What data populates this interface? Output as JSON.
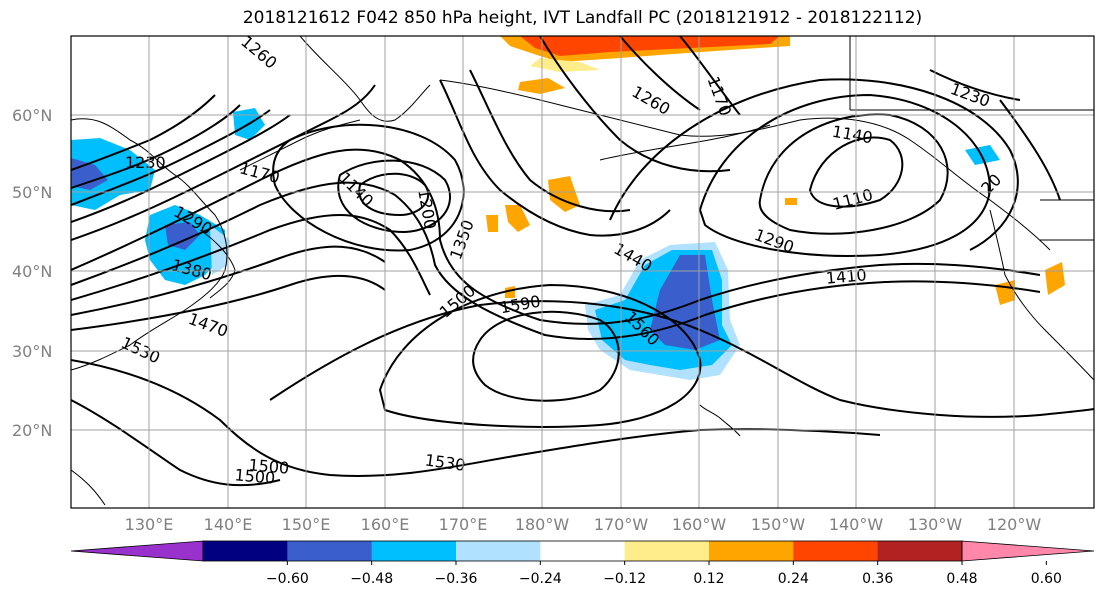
{
  "title": "2018121612 F042 850 hPa height, IVT Landfall PC (2018121912 - 2018122112)",
  "lat_labels": [
    "60°N",
    "50°N",
    "40°N",
    "30°N",
    "20°N"
  ],
  "lon_labels": [
    "130°E",
    "140°E",
    "150°E",
    "160°E",
    "170°E",
    "180°W",
    "170°W",
    "160°W",
    "150°W",
    "140°W",
    "130°W",
    "120°W"
  ],
  "contour_labels": [
    "1260",
    "1170",
    "1140",
    "1230",
    "1290",
    "1380",
    "1470",
    "1530",
    "1500",
    "1350",
    "1200",
    "1500",
    "1590",
    "1440",
    "1560",
    "1260",
    "1170",
    "1140",
    "1230",
    "1110",
    "1290",
    "1410",
    "1530",
    "1500",
    "20"
  ],
  "colorbar": {
    "tick_labels": [
      "−0.60",
      "−0.48",
      "−0.36",
      "−0.24",
      "−0.12",
      "0.12",
      "0.24",
      "0.36",
      "0.48",
      "0.60"
    ],
    "colors": [
      "#9932cc",
      "#000080",
      "#3a5fcd",
      "#00bfff",
      "#b0e2ff",
      "#ffffff",
      "#ffec8b",
      "#ffa500",
      "#ff4500",
      "#b22222",
      "#ff88aa"
    ]
  },
  "shading_colors": {
    "deep_blue": "#3a5fcd",
    "light_blue": "#00bfff",
    "pale_blue": "#b0e2ff",
    "yellow": "#ffec8b",
    "orange": "#ffa500",
    "red_orange": "#ff4500"
  }
}
